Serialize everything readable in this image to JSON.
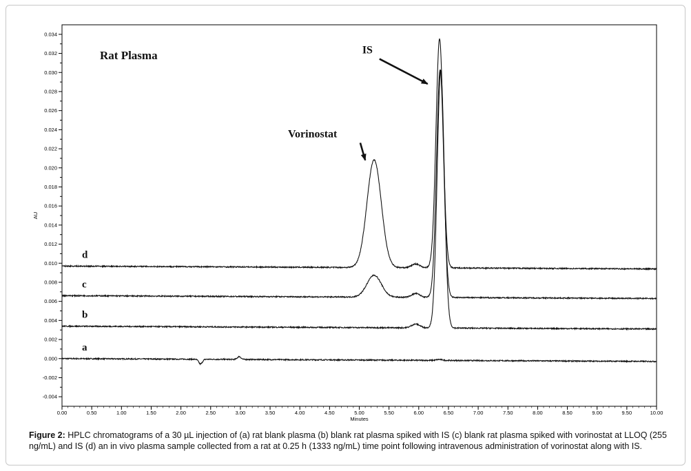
{
  "chart_data": {
    "type": "line",
    "title": "Rat Plasma",
    "xlabel": "Minutes",
    "ylabel": "AU",
    "xlim": [
      0.0,
      10.0
    ],
    "ylim": [
      -0.005,
      0.035
    ],
    "x_ticks": [
      "0.00",
      "0.50",
      "1.00",
      "1.50",
      "2.00",
      "2.50",
      "3.00",
      "3.50",
      "4.00",
      "4.50",
      "5.00",
      "5.50",
      "6.00",
      "6.50",
      "7.00",
      "7.50",
      "8.00",
      "8.50",
      "9.00",
      "9.50",
      "10.00"
    ],
    "y_ticks": [
      "-0.004",
      "-0.002",
      "0.000",
      "0.002",
      "0.004",
      "0.006",
      "0.008",
      "0.010",
      "0.012",
      "0.014",
      "0.016",
      "0.018",
      "0.020",
      "0.022",
      "0.024",
      "0.026",
      "0.028",
      "0.030",
      "0.032",
      "0.034"
    ],
    "series": [
      {
        "name": "a",
        "baseline": 0.0,
        "color": "#111111",
        "peaks": [
          {
            "x": 6.35,
            "height": 0.0001,
            "width": 0.05
          }
        ],
        "dips": [
          {
            "x": 2.33,
            "depth": -0.0005
          },
          {
            "x": 2.98,
            "depth": 0.0003
          }
        ]
      },
      {
        "name": "b",
        "baseline": 0.0034,
        "color": "#111111",
        "peaks": [
          {
            "x": 5.95,
            "height": 0.0004,
            "width": 0.07
          },
          {
            "x": 6.37,
            "height": 0.027,
            "width": 0.06
          }
        ]
      },
      {
        "name": "c",
        "baseline": 0.0066,
        "color": "#111111",
        "peaks": [
          {
            "x": 5.25,
            "height": 0.0023,
            "width": 0.12
          },
          {
            "x": 5.95,
            "height": 0.0004,
            "width": 0.07
          },
          {
            "x": 6.36,
            "height": 0.0239,
            "width": 0.06
          }
        ]
      },
      {
        "name": "d",
        "baseline": 0.0097,
        "color": "#111111",
        "peaks": [
          {
            "x": 5.25,
            "height": 0.0113,
            "width": 0.12
          },
          {
            "x": 5.95,
            "height": 0.0004,
            "width": 0.07
          },
          {
            "x": 6.35,
            "height": 0.024,
            "width": 0.06
          }
        ]
      }
    ],
    "annotations": [
      {
        "text": "Vorinostat",
        "x": 3.8,
        "y": 0.0232,
        "arrow_to": [
          5.1,
          0.0208
        ]
      },
      {
        "text": "IS",
        "x": 5.05,
        "y": 0.032,
        "arrow_to": [
          6.15,
          0.0288
        ]
      }
    ]
  },
  "caption": {
    "label": "Figure 2:",
    "text": "HPLC chromatograms of a 30 µL injection of (a) rat blank plasma (b) blank rat plasma spiked with IS (c) blank rat plasma spiked with vorinostat at LLOQ (255 ng/mL) and IS (d) an in vivo plasma sample collected from a rat at 0.25 h (1333 ng/mL) time point following intravenous administration of vorinostat along with IS."
  }
}
